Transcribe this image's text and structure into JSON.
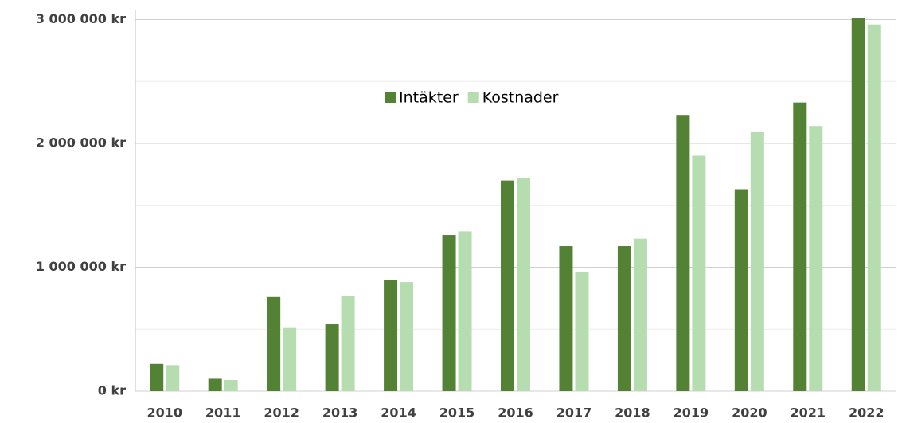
{
  "chart_data": {
    "type": "bar",
    "categories": [
      "2010",
      "2011",
      "2012",
      "2013",
      "2014",
      "2015",
      "2016",
      "2017",
      "2018",
      "2019",
      "2020",
      "2021",
      "2022"
    ],
    "series": [
      {
        "name": "Intäkter",
        "color": "#548235",
        "values": [
          220000,
          100000,
          760000,
          540000,
          900000,
          1260000,
          1700000,
          1170000,
          1170000,
          2230000,
          1630000,
          2330000,
          3010000
        ]
      },
      {
        "name": "Kostnader",
        "color": "#b5ddb0",
        "values": [
          210000,
          90000,
          510000,
          770000,
          880000,
          1290000,
          1720000,
          960000,
          1230000,
          1900000,
          2090000,
          2140000,
          2960000
        ]
      }
    ],
    "ylim": [
      0,
      3080000
    ],
    "yticks": [
      {
        "value": 0,
        "label": "0 kr"
      },
      {
        "value": 1000000,
        "label": "1 000 000 kr"
      },
      {
        "value": 2000000,
        "label": "2 000 000 kr"
      },
      {
        "value": 3000000,
        "label": "3 000 000 kr"
      }
    ],
    "minor_yticks": [
      500000,
      1500000,
      2500000
    ],
    "grid": true
  }
}
